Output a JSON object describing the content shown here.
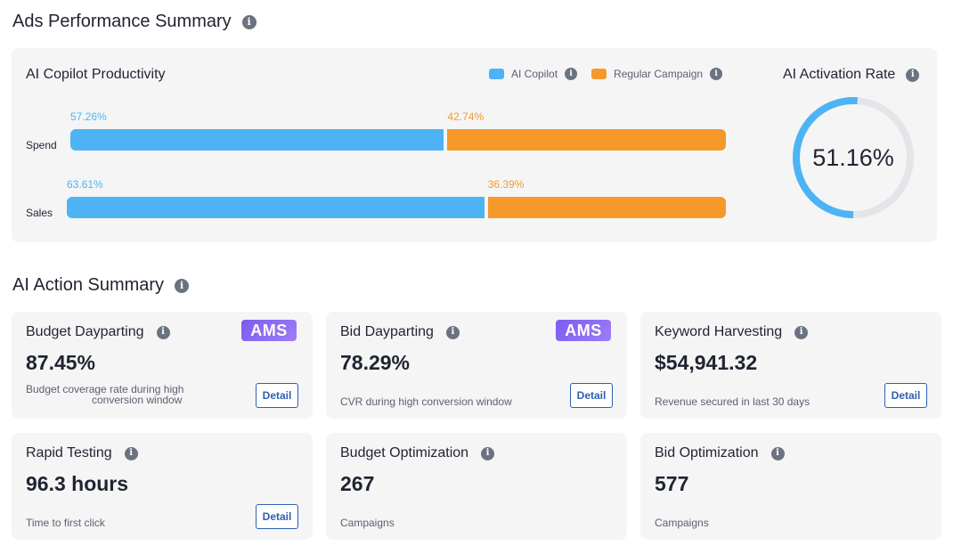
{
  "header": {
    "title": "Ads Performance Summary"
  },
  "productivity": {
    "title": "AI Copilot Productivity",
    "legend": [
      {
        "label": "AI Copilot",
        "color": "#4db3f5"
      },
      {
        "label": "Regular Campaign",
        "color": "#f5992a"
      }
    ],
    "rows": [
      {
        "label": "Spend",
        "ai_pct": 57.26,
        "regular_pct": 42.74,
        "ai_label": "57.26%",
        "regular_label": "42.74%"
      },
      {
        "label": "Sales",
        "ai_pct": 63.61,
        "regular_pct": 36.39,
        "ai_label": "63.61%",
        "regular_label": "36.39%"
      }
    ]
  },
  "activation": {
    "title": "AI Activation Rate",
    "value": 51.16,
    "value_label": "51.16%"
  },
  "action_summary": {
    "title": "AI Action Summary",
    "cards": [
      {
        "title": "Budget Dayparting",
        "value": "87.45%",
        "desc_line1": "Budget coverage rate during high",
        "desc_line2": "conversion window",
        "badge": "AMS",
        "button": "Detail"
      },
      {
        "title": "Bid Dayparting",
        "value": "78.29%",
        "desc": "CVR during high conversion window",
        "badge": "AMS",
        "button": "Detail"
      },
      {
        "title": "Keyword Harvesting",
        "value": "$54,941.32",
        "desc": "Revenue secured in last 30 days",
        "button": "Detail"
      },
      {
        "title": "Rapid Testing",
        "value": "96.3 hours",
        "desc": "Time to first click",
        "button": "Detail"
      },
      {
        "title": "Budget Optimization",
        "value": "267",
        "desc": "Campaigns"
      },
      {
        "title": "Bid Optimization",
        "value": "577",
        "desc": "Campaigns"
      }
    ]
  }
}
